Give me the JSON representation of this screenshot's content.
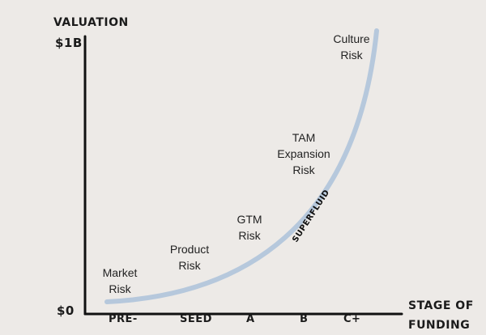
{
  "chart_data": {
    "type": "line",
    "ylabel": "VALUATION",
    "xlabel_line1": "STAGE OF",
    "xlabel_line2": "FUNDING",
    "y_ticks": [
      "$1B",
      "$0"
    ],
    "x_ticks": [
      "PRE-",
      "SEED",
      "A",
      "B",
      "C+"
    ],
    "series": [
      {
        "name": "SUPERFLUID",
        "color": "#b6c8dc"
      }
    ],
    "annotations": [
      {
        "line1": "Market",
        "line2": "Risk",
        "line3": ""
      },
      {
        "line1": "Product",
        "line2": "Risk",
        "line3": ""
      },
      {
        "line1": "GTM",
        "line2": "Risk",
        "line3": ""
      },
      {
        "line1": "TAM",
        "line2": "Expansion",
        "line3": "Risk"
      },
      {
        "line1": "Culture",
        "line2": "Risk",
        "line3": ""
      }
    ],
    "grid": false,
    "axis_color": "#111111"
  }
}
